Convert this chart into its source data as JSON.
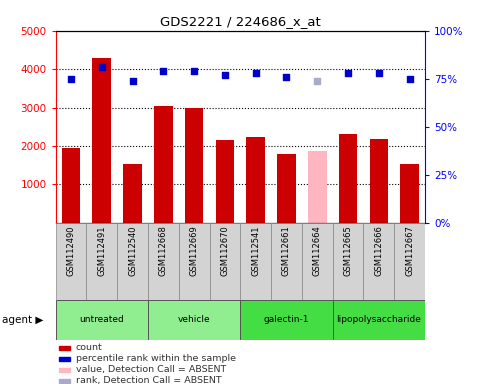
{
  "title": "GDS2221 / 224686_x_at",
  "samples": [
    "GSM112490",
    "GSM112491",
    "GSM112540",
    "GSM112668",
    "GSM112669",
    "GSM112670",
    "GSM112541",
    "GSM112661",
    "GSM112664",
    "GSM112665",
    "GSM112666",
    "GSM112667"
  ],
  "counts": [
    1950,
    4300,
    1530,
    3050,
    2980,
    2150,
    2230,
    1800,
    1870,
    2300,
    2180,
    1520
  ],
  "percentile_ranks": [
    75,
    81,
    74,
    79,
    79,
    77,
    78,
    76,
    74,
    78,
    78,
    75
  ],
  "absent_indices": [
    8
  ],
  "groups": [
    {
      "label": "untreated",
      "indices": [
        0,
        1,
        2
      ],
      "color": "#90EE90"
    },
    {
      "label": "vehicle",
      "indices": [
        3,
        4,
        5
      ],
      "color": "#90EE90"
    },
    {
      "label": "galectin-1",
      "indices": [
        6,
        7,
        8
      ],
      "color": "#44DD44"
    },
    {
      "label": "lipopolysaccharide",
      "indices": [
        9,
        10,
        11
      ],
      "color": "#44DD44"
    }
  ],
  "ylim_left": [
    0,
    5000
  ],
  "ylim_right": [
    0,
    100
  ],
  "yticks_left": [
    1000,
    2000,
    3000,
    4000,
    5000
  ],
  "yticks_right": [
    0,
    25,
    50,
    75,
    100
  ],
  "bar_color": "#CC0000",
  "absent_bar_color": "#FFB6C1",
  "dot_color": "#0000CC",
  "absent_dot_color": "#AAAACC",
  "bar_width": 0.6,
  "agent_label": "agent ▶",
  "legend_items": [
    {
      "color": "#CC0000",
      "label": "count"
    },
    {
      "color": "#0000CC",
      "label": "percentile rank within the sample"
    },
    {
      "color": "#FFB6C1",
      "label": "value, Detection Call = ABSENT"
    },
    {
      "color": "#AAAACC",
      "label": "rank, Detection Call = ABSENT"
    }
  ]
}
